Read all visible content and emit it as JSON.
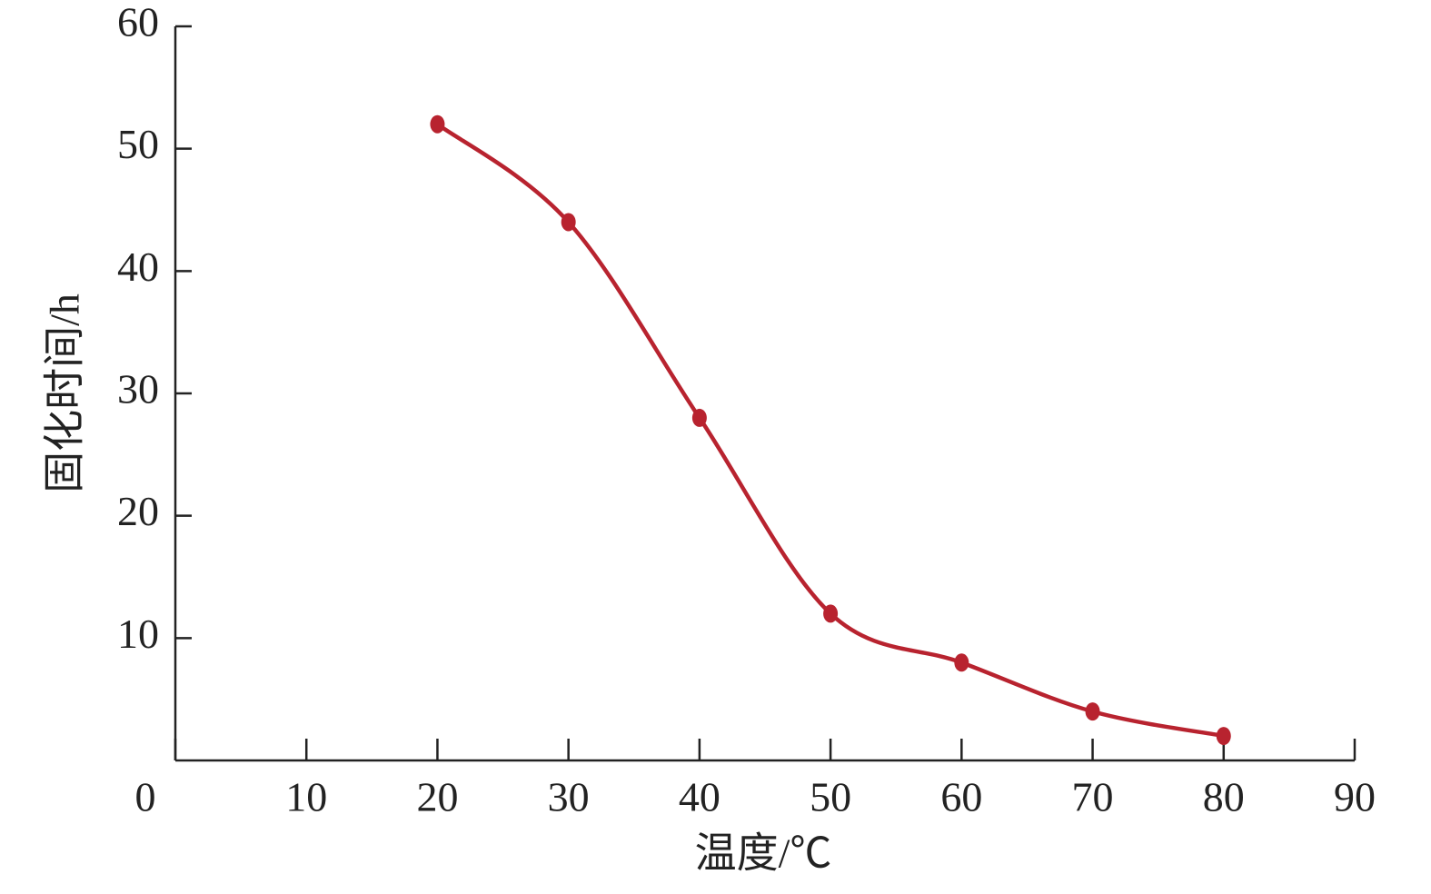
{
  "chart_data": {
    "type": "line",
    "x": [
      20,
      30,
      40,
      50,
      60,
      70,
      80
    ],
    "values": [
      52,
      44,
      28,
      12,
      8,
      4,
      2
    ],
    "color": "#b8232f",
    "xlabel": "温度/℃",
    "ylabel": "固化时间/h",
    "xlim": [
      0,
      90
    ],
    "xticks": [
      0,
      10,
      20,
      30,
      40,
      50,
      60,
      70,
      80,
      90
    ],
    "ylim": [
      0,
      60
    ],
    "yticks": [
      10,
      20,
      30,
      40,
      50,
      60
    ],
    "smooth": true
  }
}
